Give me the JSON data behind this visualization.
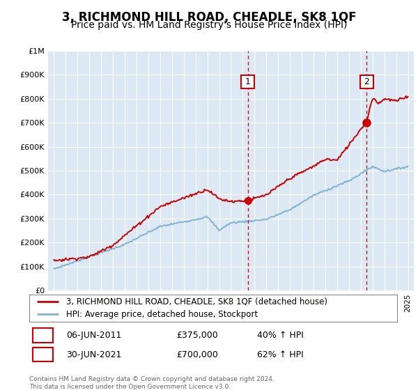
{
  "title": "3, RICHMOND HILL ROAD, CHEADLE, SK8 1QF",
  "subtitle": "Price paid vs. HM Land Registry's House Price Index (HPI)",
  "legend_line1": "3, RICHMOND HILL ROAD, CHEADLE, SK8 1QF (detached house)",
  "legend_line2": "HPI: Average price, detached house, Stockport",
  "footnote": "Contains HM Land Registry data © Crown copyright and database right 2024.\nThis data is licensed under the Open Government Licence v3.0.",
  "sale1_label": "1",
  "sale1_date": "06-JUN-2011",
  "sale1_price": "£375,000",
  "sale1_pct": "40% ↑ HPI",
  "sale1_year": 2011.43,
  "sale1_value": 375000,
  "sale2_label": "2",
  "sale2_date": "30-JUN-2021",
  "sale2_price": "£700,000",
  "sale2_pct": "62% ↑ HPI",
  "sale2_year": 2021.5,
  "sale2_value": 700000,
  "ylim": [
    0,
    1000000
  ],
  "xlim": [
    1994.5,
    2025.5
  ],
  "background_color": "#dce9f5",
  "grid_color": "#ffffff",
  "red_color": "#cc0000",
  "blue_color": "#7fb3d3",
  "dashed_color": "#cc0000",
  "title_fontsize": 12,
  "subtitle_fontsize": 10
}
